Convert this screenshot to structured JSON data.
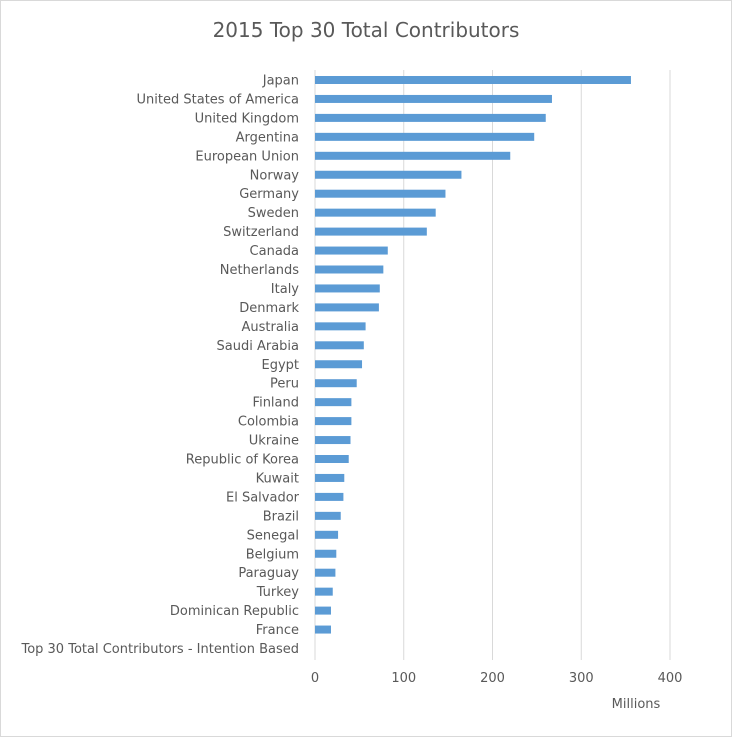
{
  "chart_data": {
    "type": "bar",
    "orientation": "horizontal",
    "title": "2015 Top 30 Total Contributors",
    "xlabel": "",
    "ylabel": "",
    "unit_label": "Millions",
    "xlim": [
      0,
      400
    ],
    "xticks": [
      0,
      100,
      200,
      300,
      400
    ],
    "grid": true,
    "bar_color": "#5b9bd5",
    "categories": [
      "Japan",
      "United States of America",
      "United Kingdom",
      "Argentina",
      "European Union",
      "Norway",
      "Germany",
      "Sweden",
      "Switzerland",
      "Canada",
      "Netherlands",
      "Italy",
      "Denmark",
      "Australia",
      "Saudi Arabia",
      "Egypt",
      "Peru",
      "Finland",
      "Colombia",
      "Ukraine",
      "Republic of Korea",
      "Kuwait",
      "El Salvador",
      "Brazil",
      "Senegal",
      "Belgium",
      "Paraguay",
      "Turkey",
      "Dominican Republic",
      "France",
      "Top 30 Total Contributors - Intention Based"
    ],
    "values": [
      356,
      267,
      260,
      247,
      220,
      165,
      147,
      136,
      126,
      82,
      77,
      73,
      72,
      57,
      55,
      53,
      47,
      41,
      41,
      40,
      38,
      33,
      32,
      29,
      26,
      24,
      23,
      20,
      18,
      18,
      0
    ]
  }
}
